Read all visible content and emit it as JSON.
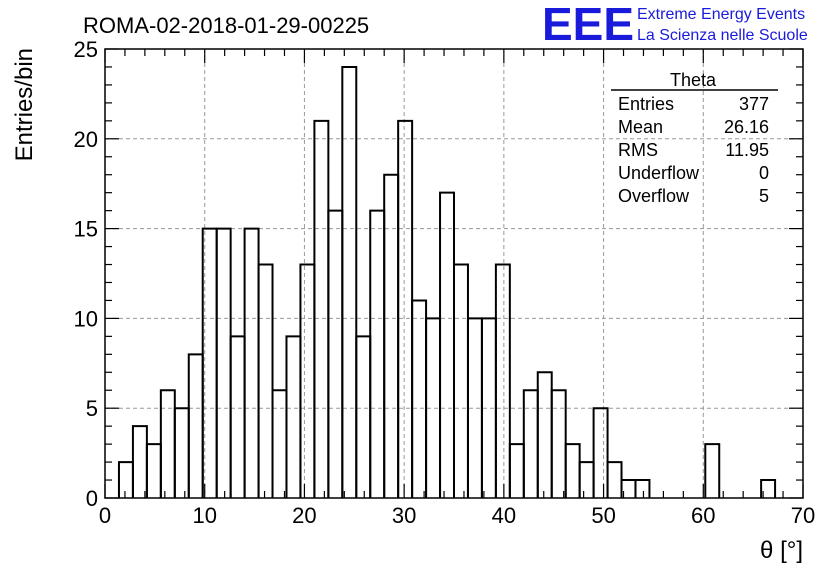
{
  "logo": {
    "mark": "EEE",
    "line1": "Extreme Energy Events",
    "line2": "La Scienza nelle Scuole"
  },
  "stats_box": {
    "title": "Theta",
    "rows": [
      {
        "label": "Entries",
        "value": "377"
      },
      {
        "label": "Mean",
        "value": "26.16"
      },
      {
        "label": "RMS",
        "value": "11.95"
      },
      {
        "label": "Underflow",
        "value": "0"
      },
      {
        "label": "Overflow",
        "value": "5"
      }
    ]
  },
  "colors": {
    "histogram": "#000000",
    "grid": "#999999",
    "logo": "#1a1adb"
  },
  "chart_data": {
    "type": "bar",
    "title": "ROMA-02-2018-01-29-00225",
    "xlabel": "θ [°]",
    "ylabel": "Entries/bin",
    "xlim": [
      0,
      70
    ],
    "ylim": [
      0,
      25
    ],
    "x_ticks": [
      0,
      10,
      20,
      30,
      40,
      50,
      60,
      70
    ],
    "y_ticks": [
      0,
      5,
      10,
      15,
      20,
      25
    ],
    "grid": true,
    "legend": "top-right",
    "bin_edges": [
      0,
      1.4,
      2.8,
      4.2,
      5.6,
      7.0,
      8.4,
      9.8,
      11.2,
      12.6,
      14.0,
      15.4,
      16.8,
      18.2,
      19.6,
      21.0,
      22.4,
      23.8,
      25.2,
      26.6,
      28.0,
      29.4,
      30.8,
      32.2,
      33.6,
      35.0,
      36.4,
      37.8,
      39.2,
      40.6,
      42.0,
      43.4,
      44.8,
      46.2,
      47.6,
      49.0,
      50.4,
      51.8,
      53.2,
      54.6,
      56.0,
      57.4,
      58.8,
      60.2,
      61.6,
      63.0,
      64.4,
      65.8,
      67.2,
      68.6,
      70.0
    ],
    "values": [
      0,
      2,
      4,
      3,
      6,
      5,
      8,
      15,
      15,
      9,
      15,
      13,
      6,
      9,
      13,
      21,
      16,
      24,
      9,
      16,
      18,
      21,
      11,
      10,
      17,
      13,
      10,
      10,
      13,
      3,
      6,
      7,
      6,
      3,
      2,
      5,
      2,
      1,
      1,
      0,
      0,
      0,
      0,
      3,
      0,
      0,
      0,
      1,
      0,
      0
    ]
  }
}
